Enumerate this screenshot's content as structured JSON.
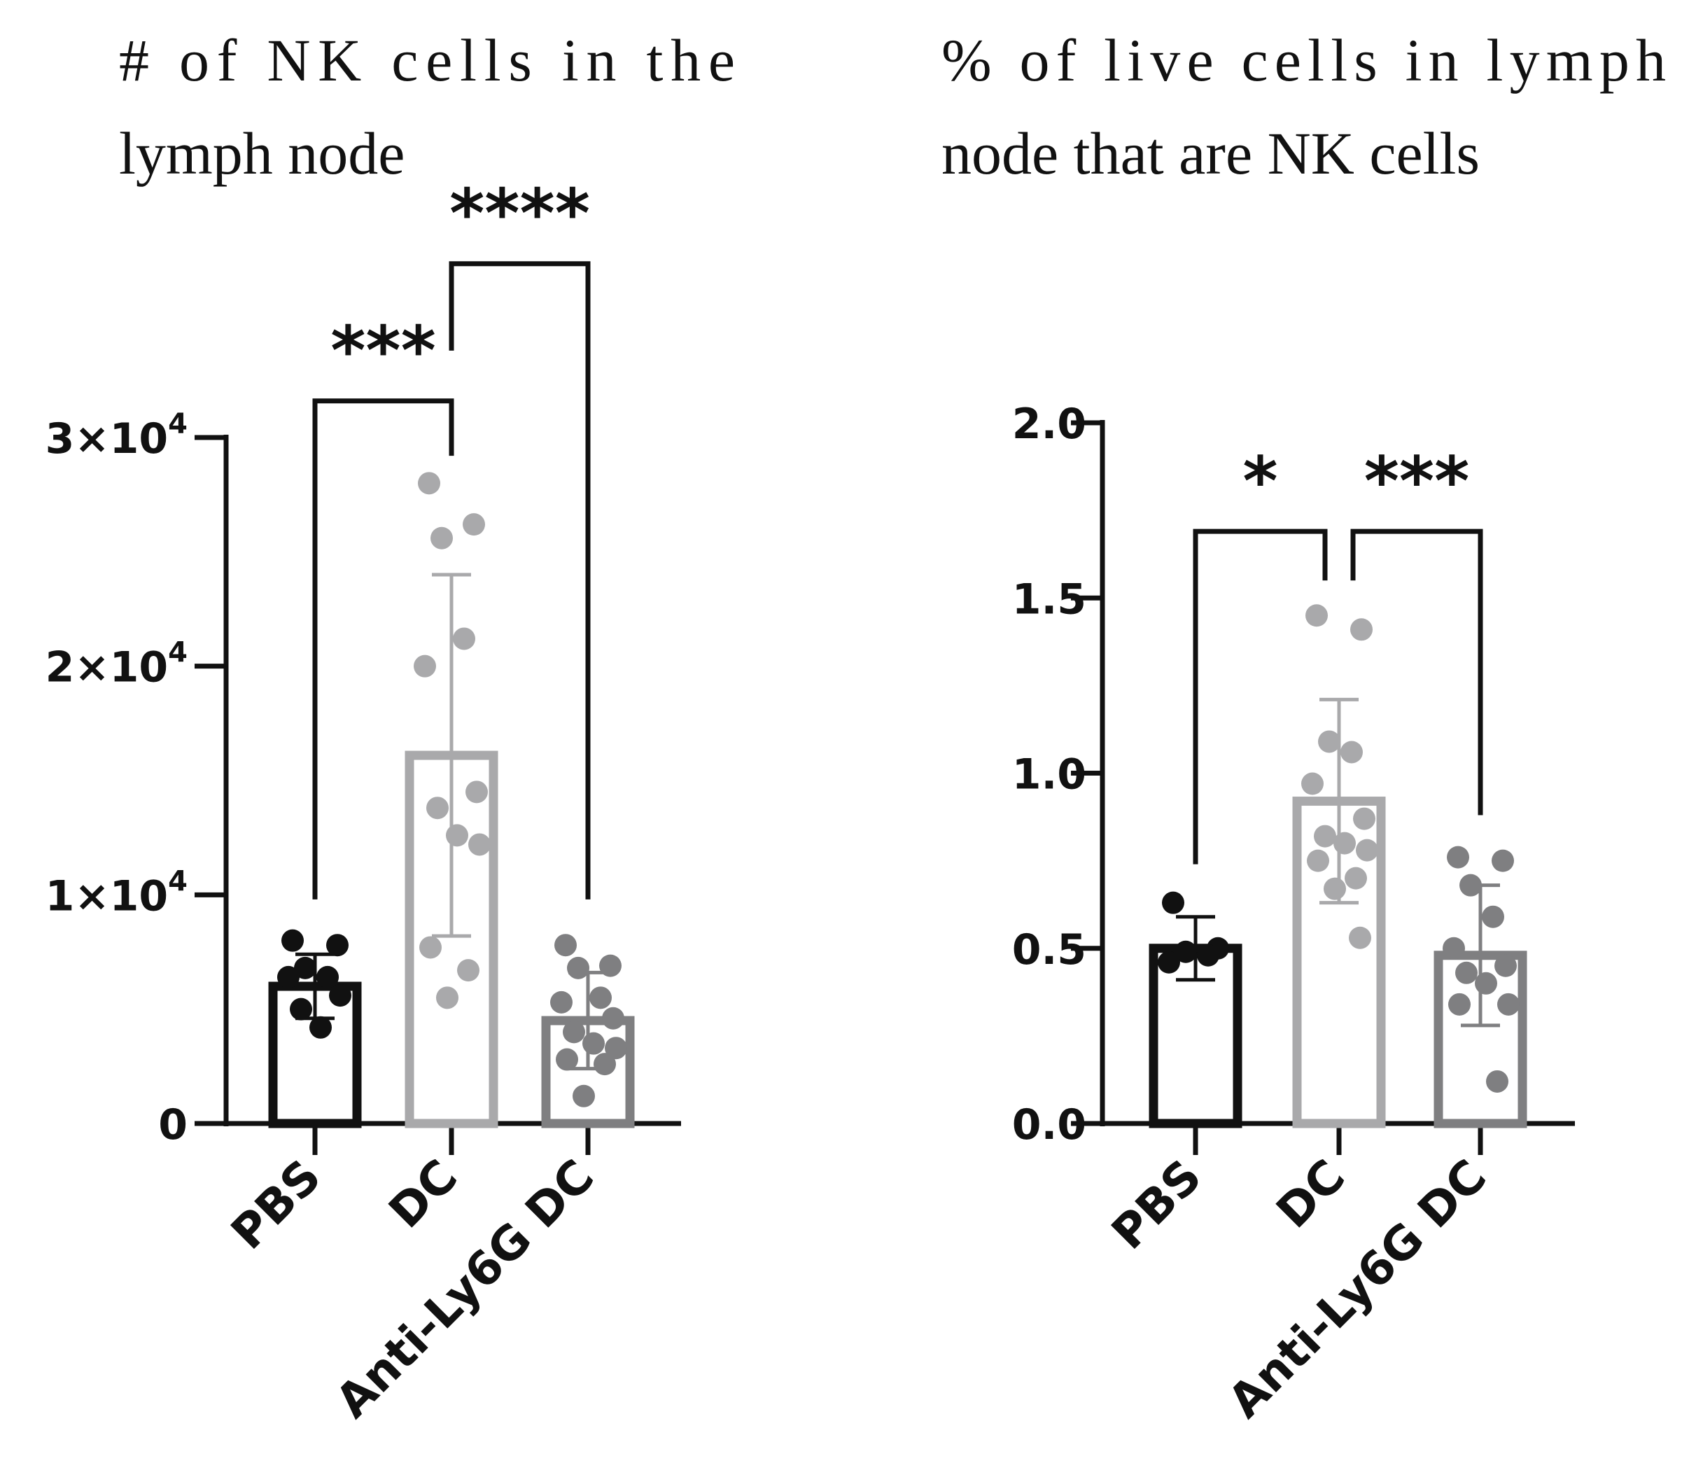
{
  "chart_data": [
    {
      "type": "bar",
      "title_lines": [
        "# of NK cells in the",
        "lymph node"
      ],
      "xlabel": "",
      "ylabel": "",
      "categories": [
        "PBS",
        "DC",
        "Anti-Ly6G DC"
      ],
      "colors": [
        "#111111",
        "#a9a9ab",
        "#7f7f81"
      ],
      "ylim": [
        0,
        30000
      ],
      "yticks": [
        {
          "value": 0,
          "base": "0",
          "exp": ""
        },
        {
          "value": 10000,
          "base": "1×10",
          "exp": "4"
        },
        {
          "value": 20000,
          "base": "2×10",
          "exp": "4"
        },
        {
          "value": 30000,
          "base": "3×10",
          "exp": "4"
        }
      ],
      "means": [
        6000,
        16100,
        4500
      ],
      "sd": [
        1400,
        7900,
        2100
      ],
      "points": [
        [
          8000,
          7800,
          6800,
          6400,
          6400,
          5600,
          5000,
          4200
        ],
        [
          28000,
          26200,
          25600,
          21200,
          20000,
          14500,
          13800,
          12600,
          12200,
          7700,
          6700,
          5500
        ],
        [
          7800,
          6900,
          6800,
          5500,
          5300,
          4600,
          4000,
          3500,
          3300,
          2800,
          2600,
          1200
        ]
      ],
      "significance": [
        {
          "from": 0,
          "to": 1,
          "label": "***",
          "level": 31600
        },
        {
          "from": 1,
          "to": 2,
          "label": "****",
          "level": 37600
        }
      ],
      "grid": false
    },
    {
      "type": "bar",
      "title_lines": [
        "% of live cells in lymph",
        "node that are NK cells"
      ],
      "xlabel": "",
      "ylabel": "",
      "categories": [
        "PBS",
        "DC",
        "Anti-Ly6G DC"
      ],
      "colors": [
        "#111111",
        "#a9a9ab",
        "#7f7f81"
      ],
      "ylim": [
        0,
        2.0
      ],
      "yticks": [
        {
          "value": 0.0,
          "base": "0.0",
          "exp": ""
        },
        {
          "value": 0.5,
          "base": "0.5",
          "exp": ""
        },
        {
          "value": 1.0,
          "base": "1.0",
          "exp": ""
        },
        {
          "value": 1.5,
          "base": "1.5",
          "exp": ""
        },
        {
          "value": 2.0,
          "base": "2.0",
          "exp": ""
        }
      ],
      "means": [
        0.5,
        0.92,
        0.48
      ],
      "sd": [
        0.09,
        0.29,
        0.2
      ],
      "points": [
        [
          0.63,
          0.5,
          0.49,
          0.48,
          0.46
        ],
        [
          1.45,
          1.41,
          1.09,
          1.06,
          0.97,
          0.87,
          0.82,
          0.8,
          0.78,
          0.75,
          0.7,
          0.67,
          0.53
        ],
        [
          0.76,
          0.75,
          0.68,
          0.59,
          0.5,
          0.45,
          0.43,
          0.4,
          0.34,
          0.34,
          0.12
        ]
      ],
      "significance": [
        {
          "from": 0,
          "to": 1,
          "label": "*",
          "level": 1.69
        },
        {
          "from": 1,
          "to": 2,
          "label": "***",
          "level": 1.69
        }
      ],
      "grid": false
    }
  ]
}
